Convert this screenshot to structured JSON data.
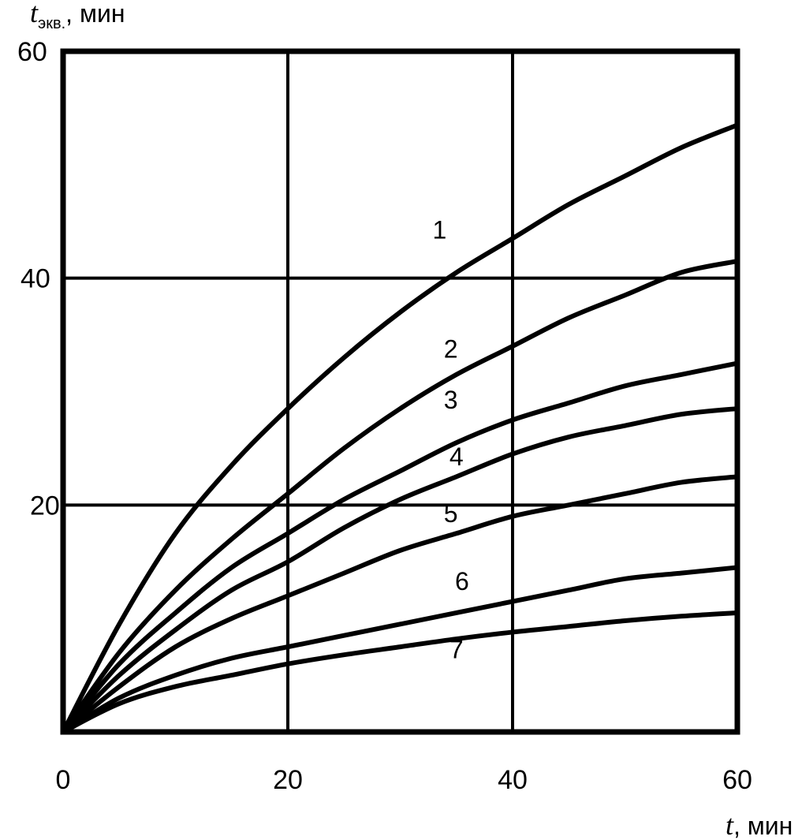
{
  "chart_data": {
    "type": "line",
    "y_title_main": "t",
    "y_title_sub": "экв.",
    "y_title_unit": ", мин",
    "x_title_main": "t",
    "x_title_unit": ", мин",
    "xlim": [
      0,
      60
    ],
    "ylim": [
      0,
      60
    ],
    "x_ticks": [
      "0",
      "20",
      "40",
      "60"
    ],
    "y_ticks": [
      "20",
      "40",
      "60"
    ],
    "grid": true,
    "series": [
      {
        "name": "1",
        "x": [
          0,
          5,
          10,
          15,
          20,
          25,
          30,
          35,
          40,
          45,
          50,
          55,
          60
        ],
        "y": [
          0,
          9.5,
          17.5,
          23.5,
          28.5,
          33,
          37,
          40.5,
          43.5,
          46.5,
          49,
          51.5,
          53.5
        ]
      },
      {
        "name": "2",
        "x": [
          0,
          5,
          10,
          15,
          20,
          25,
          30,
          35,
          40,
          45,
          50,
          55,
          60
        ],
        "y": [
          0,
          7,
          12.5,
          17,
          21,
          25,
          28.5,
          31.5,
          34,
          36.5,
          38.5,
          40.5,
          41.5
        ]
      },
      {
        "name": "3",
        "x": [
          0,
          5,
          10,
          15,
          20,
          25,
          30,
          35,
          40,
          45,
          50,
          55,
          60
        ],
        "y": [
          0,
          6,
          10.5,
          14.5,
          17.5,
          20.5,
          23,
          25.5,
          27.5,
          29,
          30.5,
          31.5,
          32.5
        ]
      },
      {
        "name": "4",
        "x": [
          0,
          5,
          10,
          15,
          20,
          25,
          30,
          35,
          40,
          45,
          50,
          55,
          60
        ],
        "y": [
          0,
          5,
          9,
          12.5,
          15,
          18,
          20.5,
          22.5,
          24.5,
          26,
          27,
          28,
          28.5
        ]
      },
      {
        "name": "5",
        "x": [
          0,
          5,
          10,
          15,
          20,
          25,
          30,
          35,
          40,
          45,
          50,
          55,
          60
        ],
        "y": [
          0,
          4,
          7.5,
          10,
          12,
          14,
          16,
          17.5,
          19,
          20,
          21,
          22,
          22.5
        ]
      },
      {
        "name": "6",
        "x": [
          0,
          5,
          10,
          15,
          20,
          25,
          30,
          35,
          40,
          45,
          50,
          55,
          60
        ],
        "y": [
          0,
          3,
          5,
          6.5,
          7.5,
          8.5,
          9.5,
          10.5,
          11.5,
          12.5,
          13.5,
          14,
          14.5
        ]
      },
      {
        "name": "7",
        "x": [
          0,
          5,
          10,
          15,
          20,
          25,
          30,
          35,
          40,
          45,
          50,
          55,
          60
        ],
        "y": [
          0,
          2.5,
          4,
          5,
          6,
          6.8,
          7.5,
          8.2,
          8.8,
          9.3,
          9.8,
          10.2,
          10.5
        ]
      }
    ],
    "curve_labels": [
      {
        "text": "1",
        "x": 33.5,
        "y": 43.5
      },
      {
        "text": "2",
        "x": 34.5,
        "y": 33
      },
      {
        "text": "3",
        "x": 34.5,
        "y": 28.5
      },
      {
        "text": "4",
        "x": 35,
        "y": 23.5
      },
      {
        "text": "5",
        "x": 34.5,
        "y": 18.5
      },
      {
        "text": "6",
        "x": 35.5,
        "y": 12.5
      },
      {
        "text": "7",
        "x": 35,
        "y": 6.5
      }
    ]
  }
}
